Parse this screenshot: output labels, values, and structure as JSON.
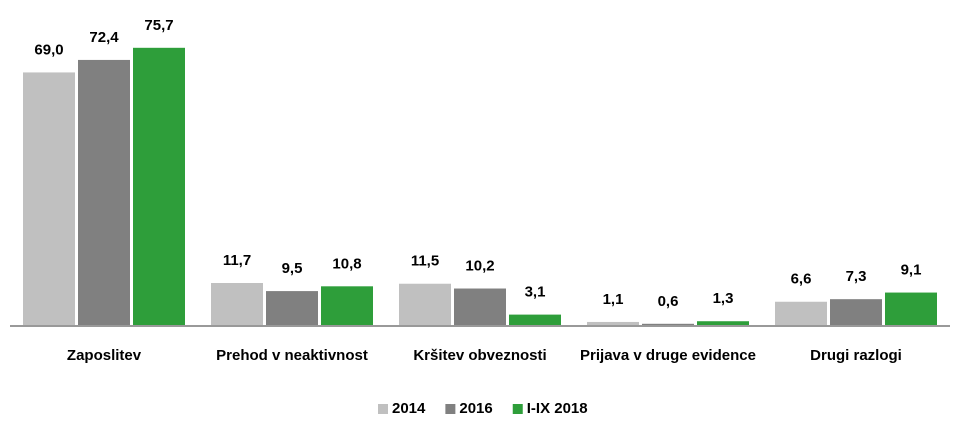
{
  "chart_data": {
    "type": "bar",
    "categories": [
      "Zaposlitev",
      "Prehod v neaktivnost",
      "Kršitev obveznosti",
      "Prijava v druge evidence",
      "Drugi razlogi"
    ],
    "series": [
      {
        "name": "2014",
        "color": "#c0c0c0",
        "values": [
          69.0,
          11.7,
          11.5,
          1.1,
          6.6
        ],
        "value_labels": [
          "69,0",
          "11,7",
          "11,5",
          "1,1",
          "6,6"
        ]
      },
      {
        "name": "2016",
        "color": "#808080",
        "values": [
          72.4,
          9.5,
          10.2,
          0.6,
          7.3
        ],
        "value_labels": [
          "72,4",
          "9,5",
          "10,2",
          "0,6",
          "7,3"
        ]
      },
      {
        "name": "I-IX 2018",
        "color": "#2e9e3a",
        "values": [
          75.7,
          10.8,
          3.1,
          1.3,
          9.1
        ],
        "value_labels": [
          "75,7",
          "10,8",
          "3,1",
          "1,3",
          "9,1"
        ]
      }
    ],
    "ylim": [
      0,
      80
    ],
    "legend": "bottom"
  }
}
